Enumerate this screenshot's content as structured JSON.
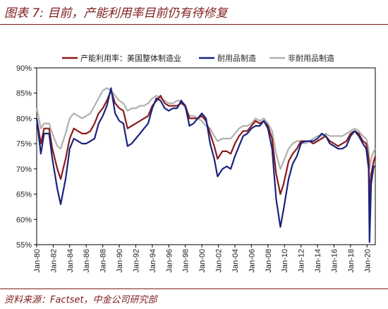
{
  "figure": {
    "title": "图表 7:  目前，产能利用率目前仍有待修复",
    "source": "资料来源：Factset，中金公司研究部"
  },
  "colors": {
    "series_total": "#8b1a1a",
    "series_durable": "#1a237e",
    "series_nondurable": "#b0b0b0",
    "accent": "#7f1d1d"
  },
  "chart_data": {
    "type": "line",
    "title": "",
    "xlabel": "",
    "ylabel": "",
    "ylim": [
      55,
      90
    ],
    "y_ticks": [
      "55%",
      "60%",
      "65%",
      "70%",
      "75%",
      "80%",
      "85%",
      "90%"
    ],
    "x_ticks": [
      "Jan-80",
      "Jan-82",
      "Jan-84",
      "Jan-86",
      "Jan-88",
      "Jan-90",
      "Jan-92",
      "Jan-94",
      "Jan-96",
      "Jan-98",
      "Jan-00",
      "Jan-02",
      "Jan-04",
      "Jan-06",
      "Jan-08",
      "Jan-10",
      "Jan-12",
      "Jan-14",
      "Jan-16",
      "Jan-18",
      "Jan-20"
    ],
    "legend_position": "top",
    "grid": false,
    "series": [
      {
        "name": "产能利用率：美国整体制造业",
        "points": [
          [
            1980.0,
            80
          ],
          [
            1980.5,
            75
          ],
          [
            1980.9,
            78
          ],
          [
            1981.5,
            78
          ],
          [
            1981.9,
            74
          ],
          [
            1982.5,
            70
          ],
          [
            1982.9,
            68
          ],
          [
            1983.5,
            72
          ],
          [
            1984.0,
            76
          ],
          [
            1984.5,
            78
          ],
          [
            1985.0,
            77.5
          ],
          [
            1985.5,
            77
          ],
          [
            1986.0,
            77
          ],
          [
            1986.5,
            77.5
          ],
          [
            1987.0,
            79
          ],
          [
            1987.5,
            81
          ],
          [
            1988.0,
            82
          ],
          [
            1988.5,
            83.5
          ],
          [
            1989.0,
            85.5
          ],
          [
            1989.5,
            83
          ],
          [
            1990.0,
            82
          ],
          [
            1990.5,
            81.5
          ],
          [
            1991.0,
            78
          ],
          [
            1991.5,
            78.5
          ],
          [
            1992.0,
            79
          ],
          [
            1992.5,
            79.5
          ],
          [
            1993.0,
            80
          ],
          [
            1993.5,
            80.5
          ],
          [
            1994.0,
            82.5
          ],
          [
            1994.5,
            83.5
          ],
          [
            1995.0,
            84.5
          ],
          [
            1995.5,
            83
          ],
          [
            1996.0,
            82.5
          ],
          [
            1996.5,
            82.5
          ],
          [
            1997.0,
            82.5
          ],
          [
            1997.5,
            83
          ],
          [
            1998.0,
            82.5
          ],
          [
            1998.5,
            80
          ],
          [
            1999.0,
            80
          ],
          [
            1999.5,
            80
          ],
          [
            2000.0,
            80.5
          ],
          [
            2000.5,
            79.5
          ],
          [
            2001.0,
            77
          ],
          [
            2001.5,
            74.5
          ],
          [
            2001.9,
            72
          ],
          [
            2002.5,
            73.5
          ],
          [
            2003.0,
            73.5
          ],
          [
            2003.5,
            73
          ],
          [
            2004.0,
            75
          ],
          [
            2004.5,
            76.5
          ],
          [
            2005.0,
            77.5
          ],
          [
            2005.5,
            77.5
          ],
          [
            2006.0,
            78.5
          ],
          [
            2006.5,
            79.5
          ],
          [
            2007.0,
            79
          ],
          [
            2007.5,
            79.5
          ],
          [
            2008.0,
            78.5
          ],
          [
            2008.5,
            76
          ],
          [
            2009.0,
            69
          ],
          [
            2009.5,
            65
          ],
          [
            2009.9,
            67
          ],
          [
            2010.5,
            71.5
          ],
          [
            2011.0,
            73
          ],
          [
            2011.5,
            74
          ],
          [
            2012.0,
            75.5
          ],
          [
            2012.5,
            75.5
          ],
          [
            2013.0,
            75.5
          ],
          [
            2013.5,
            75
          ],
          [
            2014.0,
            75.5
          ],
          [
            2014.5,
            76
          ],
          [
            2015.0,
            76.5
          ],
          [
            2015.5,
            75.5
          ],
          [
            2016.0,
            75
          ],
          [
            2016.5,
            74.5
          ],
          [
            2017.0,
            75
          ],
          [
            2017.5,
            75.5
          ],
          [
            2018.0,
            77
          ],
          [
            2018.5,
            77.5
          ],
          [
            2019.0,
            77
          ],
          [
            2019.5,
            75.5
          ],
          [
            2019.9,
            75
          ],
          [
            2020.2,
            72
          ],
          [
            2020.3,
            63.5
          ],
          [
            2020.5,
            69
          ],
          [
            2020.8,
            71.5
          ],
          [
            2021.0,
            72.5
          ]
        ]
      },
      {
        "name": "耐用品制造",
        "points": [
          [
            1980.0,
            80
          ],
          [
            1980.5,
            73
          ],
          [
            1980.9,
            77
          ],
          [
            1981.5,
            77
          ],
          [
            1981.9,
            72
          ],
          [
            1982.5,
            66
          ],
          [
            1982.9,
            63
          ],
          [
            1983.5,
            68
          ],
          [
            1984.0,
            74
          ],
          [
            1984.5,
            76
          ],
          [
            1985.0,
            75.5
          ],
          [
            1985.5,
            75
          ],
          [
            1986.0,
            75
          ],
          [
            1986.5,
            75.5
          ],
          [
            1987.0,
            76
          ],
          [
            1987.5,
            79
          ],
          [
            1988.0,
            80.5
          ],
          [
            1988.5,
            82.5
          ],
          [
            1989.0,
            86
          ],
          [
            1989.5,
            81
          ],
          [
            1990.0,
            79.5
          ],
          [
            1990.5,
            79
          ],
          [
            1991.0,
            74.5
          ],
          [
            1991.5,
            75
          ],
          [
            1992.0,
            76
          ],
          [
            1992.5,
            77
          ],
          [
            1993.0,
            78
          ],
          [
            1993.5,
            79
          ],
          [
            1994.0,
            82
          ],
          [
            1994.5,
            84
          ],
          [
            1995.0,
            83.5
          ],
          [
            1995.5,
            82
          ],
          [
            1996.0,
            81.5
          ],
          [
            1996.5,
            82
          ],
          [
            1997.0,
            82
          ],
          [
            1997.5,
            83.5
          ],
          [
            1998.0,
            82.5
          ],
          [
            1998.5,
            78.5
          ],
          [
            1999.0,
            79
          ],
          [
            1999.5,
            80
          ],
          [
            2000.0,
            81
          ],
          [
            2000.5,
            80
          ],
          [
            2001.0,
            75
          ],
          [
            2001.5,
            72
          ],
          [
            2001.9,
            68.5
          ],
          [
            2002.5,
            70
          ],
          [
            2003.0,
            70.5
          ],
          [
            2003.5,
            70
          ],
          [
            2004.0,
            72.5
          ],
          [
            2004.5,
            74.5
          ],
          [
            2005.0,
            76.5
          ],
          [
            2005.5,
            77
          ],
          [
            2006.0,
            78
          ],
          [
            2006.5,
            78.5
          ],
          [
            2007.0,
            78.5
          ],
          [
            2007.5,
            79.5
          ],
          [
            2008.0,
            78
          ],
          [
            2008.5,
            74
          ],
          [
            2009.0,
            64
          ],
          [
            2009.5,
            58.5
          ],
          [
            2009.9,
            62
          ],
          [
            2010.5,
            68
          ],
          [
            2011.0,
            71
          ],
          [
            2011.5,
            72.5
          ],
          [
            2012.0,
            75
          ],
          [
            2012.5,
            75.5
          ],
          [
            2013.0,
            75.5
          ],
          [
            2013.5,
            75.5
          ],
          [
            2014.0,
            76
          ],
          [
            2014.5,
            77
          ],
          [
            2015.0,
            76.5
          ],
          [
            2015.5,
            75
          ],
          [
            2016.0,
            74.5
          ],
          [
            2016.5,
            74
          ],
          [
            2017.0,
            74
          ],
          [
            2017.5,
            74.5
          ],
          [
            2018.0,
            76.5
          ],
          [
            2018.5,
            77.5
          ],
          [
            2019.0,
            76.5
          ],
          [
            2019.5,
            75
          ],
          [
            2019.9,
            74
          ],
          [
            2020.2,
            70
          ],
          [
            2020.3,
            55.5
          ],
          [
            2020.5,
            67
          ],
          [
            2020.8,
            70.5
          ],
          [
            2021.0,
            70.5
          ]
        ]
      },
      {
        "name": "非耐用品制造",
        "points": [
          [
            1980.0,
            82
          ],
          [
            1980.5,
            78
          ],
          [
            1980.9,
            79
          ],
          [
            1981.5,
            79
          ],
          [
            1981.9,
            77
          ],
          [
            1982.5,
            74.5
          ],
          [
            1982.9,
            74
          ],
          [
            1983.5,
            77
          ],
          [
            1984.0,
            80
          ],
          [
            1984.5,
            81
          ],
          [
            1985.0,
            80.5
          ],
          [
            1985.5,
            80
          ],
          [
            1986.0,
            80.5
          ],
          [
            1986.5,
            81
          ],
          [
            1987.0,
            82.5
          ],
          [
            1987.5,
            84
          ],
          [
            1988.0,
            85.5
          ],
          [
            1988.5,
            86
          ],
          [
            1989.0,
            85.5
          ],
          [
            1989.5,
            84.5
          ],
          [
            1990.0,
            83.5
          ],
          [
            1990.5,
            83
          ],
          [
            1991.0,
            81.5
          ],
          [
            1991.5,
            82
          ],
          [
            1992.0,
            82
          ],
          [
            1992.5,
            82.5
          ],
          [
            1993.0,
            82.5
          ],
          [
            1993.5,
            83
          ],
          [
            1994.0,
            84
          ],
          [
            1994.5,
            84.5
          ],
          [
            1995.0,
            84
          ],
          [
            1995.5,
            83.5
          ],
          [
            1996.0,
            83
          ],
          [
            1996.5,
            83
          ],
          [
            1997.0,
            83.5
          ],
          [
            1997.5,
            83.5
          ],
          [
            1998.0,
            82
          ],
          [
            1998.5,
            80.5
          ],
          [
            1999.0,
            80.5
          ],
          [
            1999.5,
            80
          ],
          [
            2000.0,
            79.5
          ],
          [
            2000.5,
            78.5
          ],
          [
            2001.0,
            78
          ],
          [
            2001.5,
            76.5
          ],
          [
            2001.9,
            75.5
          ],
          [
            2002.5,
            76
          ],
          [
            2003.0,
            76
          ],
          [
            2003.5,
            76
          ],
          [
            2004.0,
            77
          ],
          [
            2004.5,
            78
          ],
          [
            2005.0,
            78.5
          ],
          [
            2005.5,
            78.5
          ],
          [
            2006.0,
            79
          ],
          [
            2006.5,
            80
          ],
          [
            2007.0,
            79.5
          ],
          [
            2007.5,
            80
          ],
          [
            2008.0,
            79
          ],
          [
            2008.5,
            77.5
          ],
          [
            2009.0,
            73
          ],
          [
            2009.5,
            70
          ],
          [
            2009.9,
            71.5
          ],
          [
            2010.5,
            74
          ],
          [
            2011.0,
            75
          ],
          [
            2011.5,
            75.5
          ],
          [
            2012.0,
            75.5
          ],
          [
            2012.5,
            75
          ],
          [
            2013.0,
            75.5
          ],
          [
            2013.5,
            76
          ],
          [
            2014.0,
            76.5
          ],
          [
            2014.5,
            76.5
          ],
          [
            2015.0,
            77
          ],
          [
            2015.5,
            76.5
          ],
          [
            2016.0,
            76.5
          ],
          [
            2016.5,
            76.5
          ],
          [
            2017.0,
            76.5
          ],
          [
            2017.5,
            77
          ],
          [
            2018.0,
            77.5
          ],
          [
            2018.5,
            78
          ],
          [
            2019.0,
            77.5
          ],
          [
            2019.5,
            76.5
          ],
          [
            2019.9,
            76
          ],
          [
            2020.2,
            74
          ],
          [
            2020.3,
            70
          ],
          [
            2020.5,
            72
          ],
          [
            2020.8,
            73.5
          ],
          [
            2021.0,
            74
          ]
        ]
      }
    ]
  }
}
